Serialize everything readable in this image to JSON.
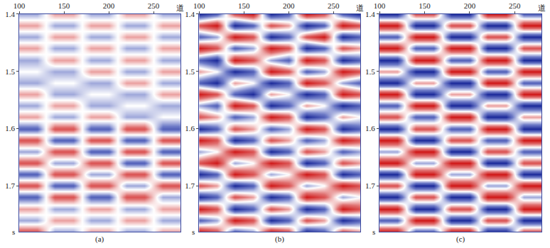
{
  "chart_data": [
    {
      "type": "heatmap",
      "title": "(a)",
      "xlabel": "道",
      "ylabel": "s",
      "x": [
        100,
        120,
        140,
        160,
        180,
        200,
        220,
        240,
        260,
        280
      ],
      "y": [
        1.4,
        1.42,
        1.44,
        1.46,
        1.48,
        1.5,
        1.52,
        1.54,
        1.56,
        1.58,
        1.6,
        1.62,
        1.64,
        1.66,
        1.68,
        1.7,
        1.72,
        1.74,
        1.76,
        1.78
      ],
      "xlim": [
        100,
        280
      ],
      "ylim": [
        1.78,
        1.4
      ],
      "xticks": [
        100,
        150,
        200,
        250
      ],
      "yticks": [
        1.4,
        1.5,
        1.6,
        1.7
      ],
      "zlim": [
        -3,
        3
      ],
      "z": [
        [
          -1,
          -1,
          1,
          1,
          -1,
          -1,
          1,
          1,
          -1,
          -1
        ],
        [
          1,
          1,
          -1,
          -1,
          1,
          1,
          -1,
          -1,
          1,
          1
        ],
        [
          -1,
          -1,
          1,
          1,
          -1,
          -1,
          1,
          1,
          -1,
          -1
        ],
        [
          1,
          1,
          -1,
          -1,
          1,
          1,
          -1,
          -1,
          1,
          1
        ],
        [
          -1,
          -1,
          1,
          1,
          -1,
          -1,
          1,
          1,
          -1,
          -1
        ],
        [
          0,
          0,
          -1,
          -1,
          1,
          1,
          -1,
          -1,
          1,
          1
        ],
        [
          -1,
          -1,
          0,
          0,
          -1,
          -1,
          1,
          1,
          -1,
          -1
        ],
        [
          1,
          1,
          -1,
          -1,
          0,
          0,
          -1,
          -1,
          1,
          1
        ],
        [
          -1,
          -1,
          1,
          1,
          -1,
          -1,
          0,
          0,
          -1,
          -1
        ],
        [
          1,
          1,
          -1,
          -1,
          1,
          1,
          -1,
          -1,
          0,
          0
        ],
        [
          -2,
          -2,
          2,
          2,
          -2,
          -2,
          2,
          2,
          -2,
          -2
        ],
        [
          2,
          2,
          -2,
          -2,
          2,
          2,
          -2,
          -2,
          2,
          2
        ],
        [
          -1,
          -1,
          2,
          2,
          -2,
          -2,
          2,
          2,
          -2,
          -2
        ],
        [
          2,
          2,
          -1,
          -1,
          2,
          2,
          -2,
          -2,
          2,
          2
        ],
        [
          -2,
          -2,
          2,
          2,
          -1,
          -1,
          2,
          2,
          -2,
          -2
        ],
        [
          2,
          2,
          -2,
          -2,
          2,
          2,
          -1,
          -1,
          2,
          2
        ],
        [
          -2,
          -2,
          2,
          2,
          -2,
          -2,
          2,
          2,
          -1,
          -1
        ],
        [
          1,
          1,
          -1,
          -1,
          1,
          1,
          -1,
          -1,
          1,
          1
        ],
        [
          -1,
          -1,
          1,
          1,
          -1,
          -1,
          1,
          1,
          -1,
          -1
        ],
        [
          2,
          2,
          -1,
          -1,
          1,
          1,
          -1,
          -1,
          1,
          1
        ]
      ]
    },
    {
      "type": "heatmap",
      "title": "(b)",
      "xlabel": "道",
      "ylabel": "s",
      "x": [
        100,
        120,
        140,
        160,
        180,
        200,
        220,
        240,
        260,
        280
      ],
      "y": [
        1.4,
        1.42,
        1.44,
        1.46,
        1.48,
        1.5,
        1.52,
        1.54,
        1.56,
        1.58,
        1.6,
        1.62,
        1.64,
        1.66,
        1.68,
        1.7,
        1.72,
        1.74,
        1.76,
        1.78
      ],
      "xlim": [
        100,
        280
      ],
      "ylim": [
        1.78,
        1.4
      ],
      "xticks": [
        100,
        150,
        200,
        250
      ],
      "yticks": [
        1.4,
        1.5,
        1.6,
        1.7
      ],
      "zlim": [
        -3,
        3
      ],
      "z": [
        [
          -3,
          -2,
          2,
          3,
          -3,
          -2,
          3,
          2,
          -2,
          -3
        ],
        [
          2,
          3,
          -3,
          -2,
          2,
          1,
          -3,
          -2,
          3,
          2
        ],
        [
          -2,
          -1,
          3,
          2,
          -3,
          -2,
          2,
          3,
          -3,
          -2
        ],
        [
          3,
          2,
          -2,
          -1,
          3,
          2,
          -3,
          -2,
          2,
          1
        ],
        [
          -2,
          -3,
          3,
          2,
          -1,
          -2,
          3,
          2,
          -3,
          -2
        ],
        [
          1,
          0,
          -3,
          -2,
          3,
          2,
          -2,
          -1,
          3,
          2
        ],
        [
          -2,
          -3,
          1,
          0,
          -3,
          -2,
          3,
          2,
          -1,
          -2
        ],
        [
          3,
          2,
          -2,
          -3,
          1,
          0,
          -3,
          -2,
          3,
          2
        ],
        [
          -1,
          -2,
          3,
          2,
          -3,
          -2,
          1,
          0,
          -3,
          -2
        ],
        [
          2,
          1,
          -2,
          -1,
          3,
          2,
          -3,
          -2,
          1,
          0
        ],
        [
          -3,
          -2,
          2,
          1,
          -2,
          -1,
          3,
          2,
          -3,
          -2
        ],
        [
          3,
          2,
          -3,
          -2,
          2,
          1,
          -2,
          -1,
          3,
          2
        ],
        [
          -1,
          0,
          3,
          2,
          -3,
          -2,
          2,
          1,
          -2,
          -1
        ],
        [
          2,
          3,
          -1,
          0,
          3,
          2,
          -3,
          -2,
          2,
          1
        ],
        [
          -3,
          -2,
          3,
          2,
          -1,
          0,
          3,
          2,
          -3,
          -2
        ],
        [
          2,
          1,
          -3,
          -2,
          3,
          2,
          -1,
          0,
          3,
          2
        ],
        [
          -3,
          -2,
          2,
          1,
          -3,
          -2,
          3,
          2,
          -1,
          0
        ],
        [
          3,
          2,
          -3,
          -2,
          2,
          1,
          -3,
          -2,
          3,
          2
        ],
        [
          -2,
          -1,
          3,
          2,
          -3,
          -2,
          2,
          1,
          -3,
          -2
        ],
        [
          3,
          2,
          -2,
          -1,
          3,
          2,
          -3,
          -2,
          2,
          1
        ]
      ]
    },
    {
      "type": "heatmap",
      "title": "(c)",
      "xlabel": "道",
      "ylabel": "s",
      "x": [
        100,
        120,
        140,
        160,
        180,
        200,
        220,
        240,
        260,
        280
      ],
      "y": [
        1.4,
        1.42,
        1.44,
        1.46,
        1.48,
        1.5,
        1.52,
        1.54,
        1.56,
        1.58,
        1.6,
        1.62,
        1.64,
        1.66,
        1.68,
        1.7,
        1.72,
        1.74,
        1.76,
        1.78
      ],
      "xlim": [
        100,
        280
      ],
      "ylim": [
        1.78,
        1.4
      ],
      "xticks": [
        100,
        150,
        200,
        250
      ],
      "yticks": [
        1.4,
        1.5,
        1.6,
        1.7
      ],
      "zlim": [
        -3,
        3
      ],
      "z": [
        [
          -3,
          -3,
          2,
          2,
          -3,
          -3,
          3,
          3,
          -2,
          -2
        ],
        [
          3,
          3,
          -3,
          -3,
          2,
          2,
          -3,
          -3,
          3,
          3
        ],
        [
          -2,
          -2,
          3,
          3,
          -3,
          -3,
          2,
          2,
          -3,
          -3
        ],
        [
          3,
          3,
          -2,
          -2,
          3,
          3,
          -3,
          -3,
          2,
          2
        ],
        [
          -3,
          -3,
          3,
          3,
          -2,
          -2,
          3,
          3,
          -3,
          -3
        ],
        [
          1,
          1,
          -3,
          -3,
          3,
          3,
          -2,
          -2,
          3,
          3
        ],
        [
          -3,
          -3,
          1,
          1,
          -3,
          -3,
          3,
          3,
          -2,
          -2
        ],
        [
          3,
          3,
          -3,
          -3,
          1,
          1,
          -3,
          -3,
          3,
          3
        ],
        [
          -2,
          -2,
          3,
          3,
          -3,
          -3,
          1,
          1,
          -3,
          -3
        ],
        [
          2,
          2,
          -2,
          -2,
          3,
          3,
          -3,
          -3,
          1,
          1
        ],
        [
          -3,
          -3,
          2,
          2,
          -2,
          -2,
          3,
          3,
          -3,
          -3
        ],
        [
          3,
          3,
          -3,
          -3,
          2,
          2,
          -2,
          -2,
          3,
          3
        ],
        [
          -1,
          -1,
          3,
          3,
          -3,
          -3,
          2,
          2,
          -2,
          -2
        ],
        [
          3,
          3,
          -1,
          -1,
          3,
          3,
          -3,
          -3,
          2,
          2
        ],
        [
          -3,
          -3,
          3,
          3,
          -1,
          -1,
          3,
          3,
          -3,
          -3
        ],
        [
          2,
          2,
          -3,
          -3,
          3,
          3,
          -1,
          -1,
          3,
          3
        ],
        [
          -3,
          -3,
          2,
          2,
          -3,
          -3,
          3,
          3,
          -1,
          -1
        ],
        [
          3,
          3,
          -3,
          -3,
          2,
          2,
          -3,
          -3,
          3,
          3
        ],
        [
          -2,
          -2,
          3,
          3,
          -3,
          -3,
          2,
          2,
          -3,
          -3
        ],
        [
          3,
          3,
          -2,
          -2,
          3,
          3,
          -3,
          -3,
          2,
          2
        ]
      ]
    }
  ]
}
